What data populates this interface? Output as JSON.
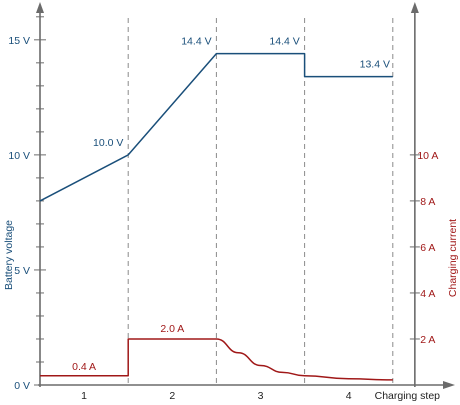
{
  "chart_data": {
    "type": "line",
    "x_axis": {
      "label": "Charging step",
      "categories": [
        "1",
        "2",
        "3",
        "4"
      ],
      "range": [
        0,
        4.25
      ]
    },
    "y_left": {
      "label": "Battery voltage",
      "unit": "V",
      "range": [
        0,
        16.6
      ],
      "major_ticks": [
        0,
        5,
        10,
        15
      ],
      "major_tick_labels": [
        "0 V",
        "5 V",
        "10 V",
        "15 V"
      ],
      "minor_step": 1
    },
    "y_right": {
      "label": "Charging current",
      "unit": "A",
      "range": [
        0,
        16.6
      ],
      "ticks": [
        2,
        4,
        6,
        8,
        10
      ],
      "tick_labels": [
        "2 A",
        "4 A",
        "6 A",
        "8 A",
        "10 A"
      ]
    },
    "step_boundaries": [
      1,
      2,
      3,
      4
    ],
    "series": [
      {
        "name": "Battery voltage",
        "axis": "left",
        "color": "#1a4f7a",
        "points": [
          [
            0,
            8.0
          ],
          [
            1,
            10.0
          ],
          [
            2,
            14.4
          ],
          [
            3,
            14.4
          ],
          [
            3,
            13.4
          ],
          [
            4,
            13.4
          ]
        ]
      },
      {
        "name": "Charging current",
        "axis": "right",
        "color": "#a01818",
        "points": [
          [
            0,
            0.4
          ],
          [
            1,
            0.4
          ],
          [
            1,
            2.0
          ],
          [
            2,
            2.0
          ],
          [
            2.25,
            1.4
          ],
          [
            2.5,
            0.85
          ],
          [
            2.75,
            0.55
          ],
          [
            3,
            0.4
          ],
          [
            3.5,
            0.27
          ],
          [
            4,
            0.22
          ]
        ]
      }
    ],
    "annotations": [
      {
        "text": "10.0 V",
        "series": "Battery voltage",
        "x": 1,
        "y": 10.0
      },
      {
        "text": "14.4 V",
        "series": "Battery voltage",
        "x": 2,
        "y": 14.4
      },
      {
        "text": "14.4 V",
        "series": "Battery voltage",
        "x": 3,
        "y": 14.4
      },
      {
        "text": "13.4 V",
        "series": "Battery voltage",
        "x": 4,
        "y": 13.4
      },
      {
        "text": "0.4 A",
        "series": "Charging current",
        "x": 0.5,
        "y": 0.4
      },
      {
        "text": "2.0 A",
        "series": "Charging current",
        "x": 1.5,
        "y": 2.0
      }
    ],
    "grid": false,
    "axis_color": "#6b6b6b",
    "boundary_color": "#8a8a8a"
  }
}
